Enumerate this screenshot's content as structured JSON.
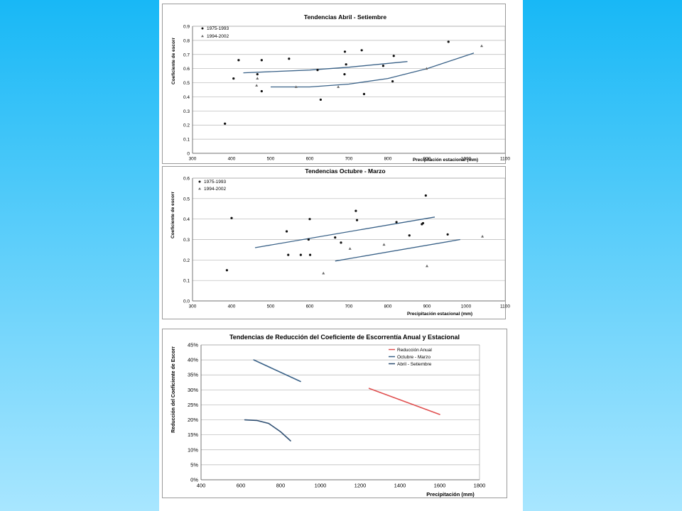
{
  "colors": {
    "background": "#33c3f9",
    "page": "#ffffff",
    "grid": "#b5b5b5",
    "trend": "#3a6288",
    "trend_dark": "#2f4f72",
    "reduction_annual": "#e05050",
    "point": "#111111"
  },
  "chart_data": [
    {
      "type": "scatter",
      "title": "Tendencias Abril - Setiembre",
      "xlabel": "Precipitación estacional (mm)",
      "ylabel": "Coeficiente de escorr",
      "xlim": [
        300,
        1100
      ],
      "ylim": [
        0,
        0.9
      ],
      "x_ticks": [
        300,
        400,
        500,
        600,
        700,
        800,
        900,
        1000,
        1100
      ],
      "y_ticks": [
        0,
        0.1,
        0.2,
        0.3,
        0.4,
        0.5,
        0.6,
        0.7,
        0.8,
        0.9
      ],
      "x_tick_labels": [
        "300",
        "400",
        "500",
        "600",
        "700",
        "800",
        "900",
        "1000",
        "1100"
      ],
      "y_tick_labels": [
        "0",
        "0.1",
        "0.2",
        "0.3",
        "0.4",
        "0.5",
        "0.6",
        "0.7",
        "0.8",
        "0.9"
      ],
      "grid": "horizontal",
      "legend_position": "top-left",
      "series": [
        {
          "name": "1975-1993",
          "marker": "dot",
          "points": [
            [
              383,
              0.21
            ],
            [
              405,
              0.53
            ],
            [
              418,
              0.66
            ],
            [
              466,
              0.56
            ],
            [
              477,
              0.44
            ],
            [
              477,
              0.66
            ],
            [
              547,
              0.67
            ],
            [
              620,
              0.59
            ],
            [
              628,
              0.38
            ],
            [
              690,
              0.72
            ],
            [
              689,
              0.56
            ],
            [
              693,
              0.63
            ],
            [
              733,
              0.73
            ],
            [
              739,
              0.42
            ],
            [
              788,
              0.62
            ],
            [
              812,
              0.51
            ],
            [
              815,
              0.69
            ],
            [
              955,
              0.79
            ]
          ]
        },
        {
          "name": "1994-2002",
          "marker": "triangle",
          "points": [
            [
              464,
              0.48
            ],
            [
              466,
              0.53
            ],
            [
              565,
              0.47
            ],
            [
              673,
              0.47
            ],
            [
              899,
              0.6
            ],
            [
              1040,
              0.76
            ]
          ]
        }
      ],
      "trendlines": [
        {
          "points": [
            [
              430,
              0.57
            ],
            [
              600,
              0.59
            ],
            [
              700,
              0.61
            ],
            [
              850,
              0.65
            ]
          ]
        },
        {
          "points": [
            [
              500,
              0.47
            ],
            [
              600,
              0.47
            ],
            [
              700,
              0.49
            ],
            [
              800,
              0.53
            ],
            [
              900,
              0.6
            ],
            [
              1020,
              0.71
            ]
          ]
        }
      ]
    },
    {
      "type": "scatter",
      "title": "Tendencias Octubre - Marzo",
      "xlabel": "Precipitación estacional (mm)",
      "ylabel": "Coeficiente de escorr",
      "xlim": [
        300,
        1100
      ],
      "ylim": [
        0,
        0.6
      ],
      "x_ticks": [
        300,
        400,
        500,
        600,
        700,
        800,
        900,
        1000,
        1100
      ],
      "y_ticks": [
        0,
        0.1,
        0.2,
        0.3,
        0.4,
        0.5,
        0.6
      ],
      "x_tick_labels": [
        "300",
        "400",
        "500",
        "600",
        "700",
        "800",
        "900",
        "1000",
        "1100"
      ],
      "y_tick_labels": [
        "0.0",
        "0.1",
        "0.2",
        "0.3",
        "0.4",
        "0.5",
        "0.6"
      ],
      "grid": "horizontal",
      "legend_position": "top-left",
      "series": [
        {
          "name": "1975-1993",
          "marker": "dot",
          "points": [
            [
              388,
              0.15
            ],
            [
              400,
              0.405
            ],
            [
              541,
              0.34
            ],
            [
              545,
              0.225
            ],
            [
              577,
              0.225
            ],
            [
              597,
              0.3
            ],
            [
              600,
              0.4
            ],
            [
              601,
              0.225
            ],
            [
              665,
              0.31
            ],
            [
              680,
              0.285
            ],
            [
              718,
              0.44
            ],
            [
              721,
              0.395
            ],
            [
              822,
              0.385
            ],
            [
              855,
              0.32
            ],
            [
              887,
              0.375
            ],
            [
              890,
              0.38
            ],
            [
              897,
              0.515
            ],
            [
              953,
              0.325
            ]
          ]
        },
        {
          "name": "1994-2002",
          "marker": "triangle",
          "points": [
            [
              635,
              0.135
            ],
            [
              703,
              0.255
            ],
            [
              790,
              0.275
            ],
            [
              900,
              0.17
            ],
            [
              1042,
              0.315
            ]
          ]
        }
      ],
      "trendlines": [
        {
          "points": [
            [
              460,
              0.26
            ],
            [
              920,
              0.41
            ]
          ]
        },
        {
          "points": [
            [
              665,
              0.195
            ],
            [
              985,
              0.3
            ]
          ]
        }
      ]
    },
    {
      "type": "line",
      "title": "Tendencias de Reducción del Coeficiente de Escorrentía Anual y Estacional",
      "xlabel": "Precipitación (mm)",
      "ylabel": "Reducción del Coeficiente de Escorr",
      "xlim": [
        400,
        1800
      ],
      "ylim": [
        0,
        45
      ],
      "x_ticks": [
        400,
        600,
        800,
        1000,
        1200,
        1400,
        1600,
        1800
      ],
      "y_ticks": [
        0,
        5,
        10,
        15,
        20,
        25,
        30,
        35,
        40,
        45
      ],
      "x_tick_labels": [
        "400",
        "600",
        "800",
        "1000",
        "1200",
        "1400",
        "1600",
        "1800"
      ],
      "y_tick_labels": [
        "0%",
        "5%",
        "10%",
        "15%",
        "20%",
        "25%",
        "30%",
        "35%",
        "40%",
        "45%"
      ],
      "grid": "horizontal",
      "legend_position": "top-right",
      "series": [
        {
          "name": "Reducción Anual",
          "color": "#e05050",
          "points": [
            [
              1245,
              30.5
            ],
            [
              1600,
              21.8
            ]
          ]
        },
        {
          "name": "Octubre - Marzo",
          "color": "#3a6288",
          "points": [
            [
              665,
              40.0
            ],
            [
              900,
              32.8
            ]
          ]
        },
        {
          "name": "Abril - Setiembre",
          "color": "#2f4f72",
          "points": [
            [
              620,
              20.0
            ],
            [
              680,
              19.8
            ],
            [
              740,
              18.8
            ],
            [
              800,
              16.0
            ],
            [
              850,
              13.0
            ]
          ]
        }
      ]
    }
  ]
}
